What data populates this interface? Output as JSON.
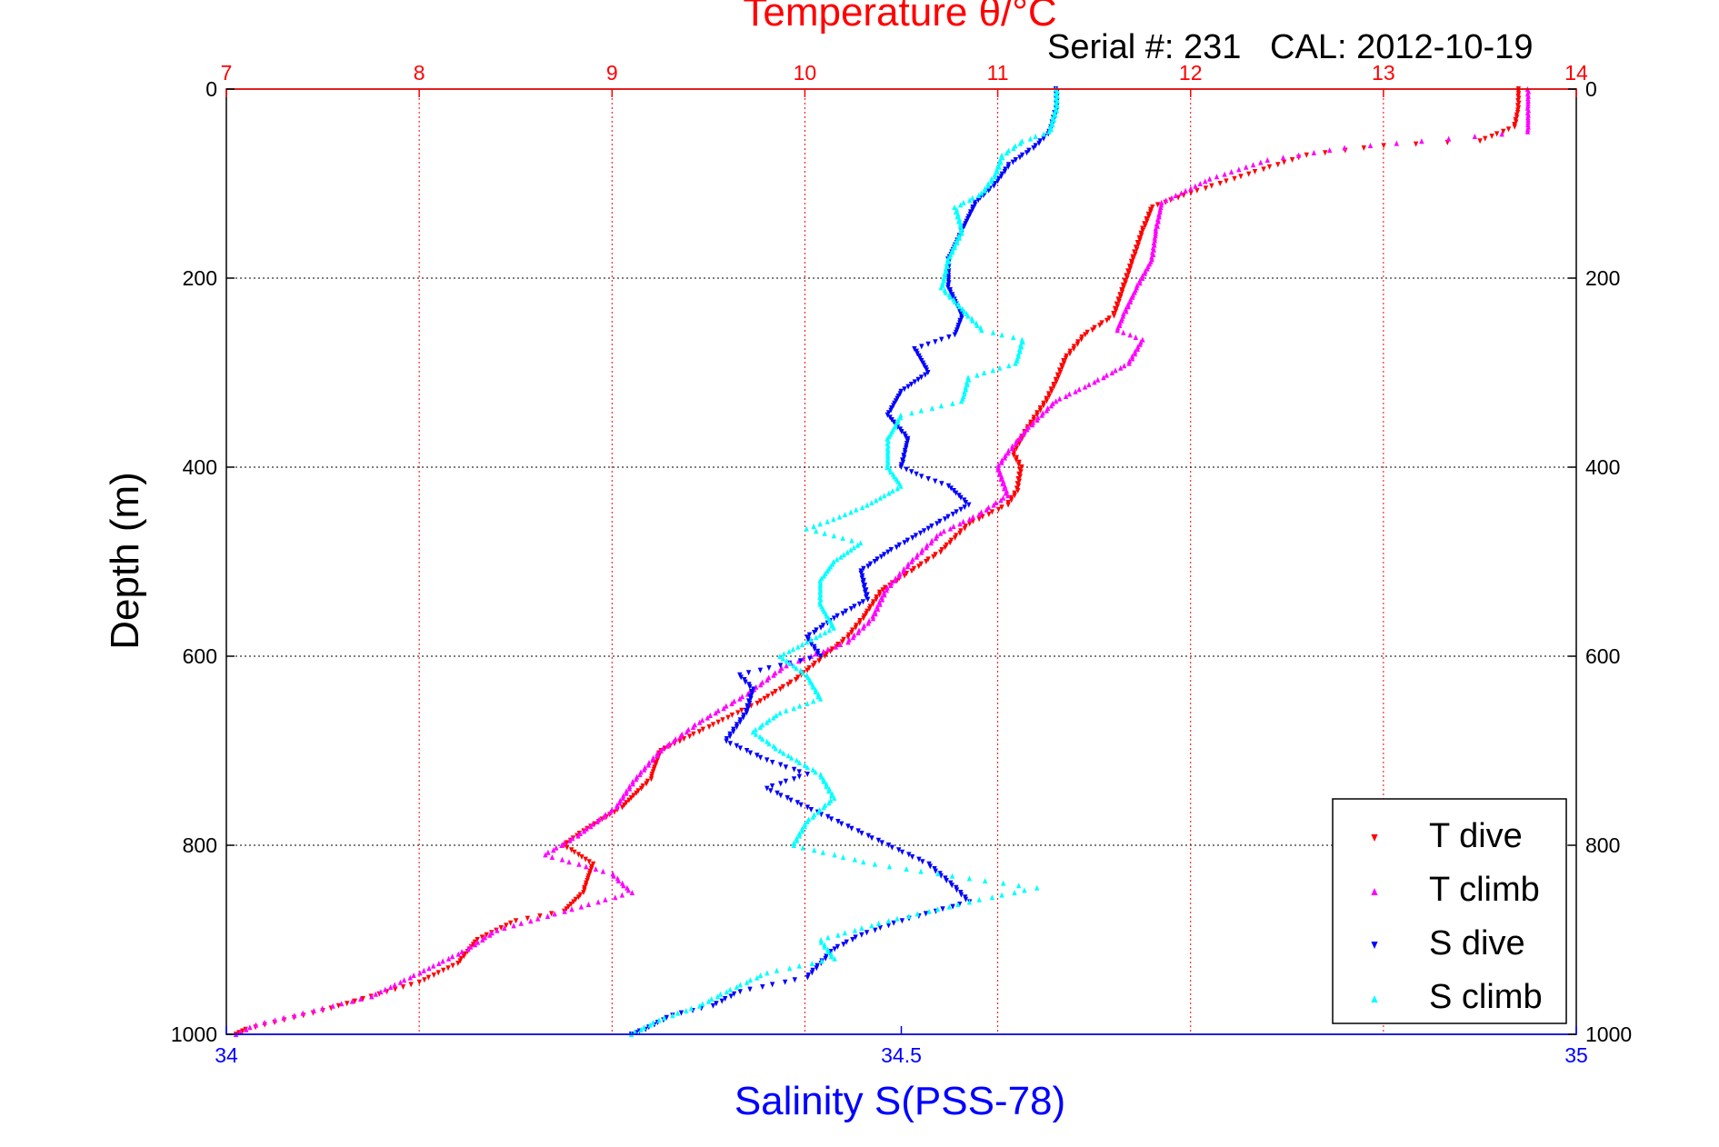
{
  "chart_data": {
    "type": "scatter",
    "title": "Temperature θ/°C",
    "annotation": "Serial #: 231   CAL: 2012-10-19",
    "ylabel": "Depth (m)",
    "xlabel": "Salinity S(PSS-78)",
    "temperature_axis": {
      "position": "top",
      "color": "#ff0000",
      "range": [
        7,
        14
      ],
      "ticks": [
        "7",
        "8",
        "9",
        "10",
        "11",
        "12",
        "13",
        "14"
      ]
    },
    "salinity_axis": {
      "position": "bottom",
      "color": "#0000ff",
      "range": [
        34,
        35
      ],
      "ticks": [
        "34",
        "34.5",
        "35"
      ]
    },
    "depth_axis": {
      "reversed": true,
      "range": [
        0,
        1000
      ],
      "ticks": [
        "0",
        "200",
        "400",
        "600",
        "800",
        "1000"
      ]
    },
    "grid": true,
    "legend_position": "bottom-right",
    "series": [
      {
        "name": "T dive",
        "axis": "temperature",
        "color": "#ff0000",
        "marker": "triangle-down",
        "points": [
          [
            13.7,
            0
          ],
          [
            13.7,
            20
          ],
          [
            13.68,
            40
          ],
          [
            13.5,
            55
          ],
          [
            13.0,
            60
          ],
          [
            12.6,
            70
          ],
          [
            12.3,
            90
          ],
          [
            12.0,
            110
          ],
          [
            11.8,
            125
          ],
          [
            11.75,
            150
          ],
          [
            11.7,
            180
          ],
          [
            11.65,
            210
          ],
          [
            11.6,
            240
          ],
          [
            11.45,
            260
          ],
          [
            11.35,
            285
          ],
          [
            11.3,
            310
          ],
          [
            11.25,
            330
          ],
          [
            11.15,
            360
          ],
          [
            11.08,
            385
          ],
          [
            11.12,
            400
          ],
          [
            11.1,
            425
          ],
          [
            11.05,
            440
          ],
          [
            10.85,
            460
          ],
          [
            10.7,
            490
          ],
          [
            10.55,
            510
          ],
          [
            10.4,
            530
          ],
          [
            10.3,
            560
          ],
          [
            10.22,
            580
          ],
          [
            10.1,
            600
          ],
          [
            9.95,
            625
          ],
          [
            9.75,
            650
          ],
          [
            9.5,
            675
          ],
          [
            9.25,
            700
          ],
          [
            9.2,
            730
          ],
          [
            9.05,
            760
          ],
          [
            8.85,
            785
          ],
          [
            8.75,
            800
          ],
          [
            8.9,
            820
          ],
          [
            8.85,
            850
          ],
          [
            8.75,
            870
          ],
          [
            8.5,
            880
          ],
          [
            8.3,
            900
          ],
          [
            8.2,
            925
          ],
          [
            8.0,
            945
          ],
          [
            7.75,
            960
          ],
          [
            7.5,
            975
          ],
          [
            7.3,
            985
          ],
          [
            7.1,
            995
          ],
          [
            7.05,
            1000
          ]
        ]
      },
      {
        "name": "T climb",
        "axis": "temperature",
        "color": "#ff00ff",
        "marker": "triangle-up",
        "points": [
          [
            13.75,
            0
          ],
          [
            13.75,
            20
          ],
          [
            13.75,
            45
          ],
          [
            13.2,
            55
          ],
          [
            12.8,
            62
          ],
          [
            12.4,
            75
          ],
          [
            12.1,
            95
          ],
          [
            11.85,
            120
          ],
          [
            11.82,
            150
          ],
          [
            11.8,
            180
          ],
          [
            11.72,
            210
          ],
          [
            11.65,
            240
          ],
          [
            11.62,
            255
          ],
          [
            11.75,
            265
          ],
          [
            11.68,
            290
          ],
          [
            11.5,
            310
          ],
          [
            11.3,
            330
          ],
          [
            11.15,
            360
          ],
          [
            11.05,
            385
          ],
          [
            11.0,
            400
          ],
          [
            11.05,
            430
          ],
          [
            10.9,
            450
          ],
          [
            10.7,
            470
          ],
          [
            10.55,
            500
          ],
          [
            10.42,
            530
          ],
          [
            10.35,
            560
          ],
          [
            10.22,
            585
          ],
          [
            9.9,
            610
          ],
          [
            9.7,
            640
          ],
          [
            9.45,
            670
          ],
          [
            9.25,
            700
          ],
          [
            9.12,
            730
          ],
          [
            9.02,
            760
          ],
          [
            8.82,
            790
          ],
          [
            8.65,
            810
          ],
          [
            9.0,
            830
          ],
          [
            9.1,
            850
          ],
          [
            8.75,
            870
          ],
          [
            8.4,
            890
          ],
          [
            8.25,
            910
          ],
          [
            8.0,
            935
          ],
          [
            7.75,
            960
          ],
          [
            7.45,
            975
          ],
          [
            7.15,
            990
          ],
          [
            7.05,
            1000
          ]
        ]
      },
      {
        "name": "S dive",
        "axis": "salinity",
        "color": "#0000ff",
        "marker": "triangle-down",
        "points": [
          [
            34.615,
            0
          ],
          [
            34.615,
            20
          ],
          [
            34.61,
            45
          ],
          [
            34.6,
            60
          ],
          [
            34.58,
            80
          ],
          [
            34.57,
            100
          ],
          [
            34.555,
            120
          ],
          [
            34.545,
            150
          ],
          [
            34.535,
            180
          ],
          [
            34.535,
            210
          ],
          [
            34.545,
            240
          ],
          [
            34.54,
            260
          ],
          [
            34.51,
            275
          ],
          [
            34.52,
            300
          ],
          [
            34.5,
            320
          ],
          [
            34.49,
            345
          ],
          [
            34.505,
            370
          ],
          [
            34.5,
            400
          ],
          [
            34.515,
            410
          ],
          [
            34.535,
            420
          ],
          [
            34.55,
            440
          ],
          [
            34.52,
            465
          ],
          [
            34.49,
            490
          ],
          [
            34.47,
            510
          ],
          [
            34.475,
            540
          ],
          [
            34.45,
            560
          ],
          [
            34.43,
            580
          ],
          [
            34.44,
            600
          ],
          [
            34.38,
            620
          ],
          [
            34.39,
            635
          ],
          [
            34.385,
            660
          ],
          [
            34.37,
            690
          ],
          [
            34.4,
            710
          ],
          [
            34.43,
            725
          ],
          [
            34.4,
            740
          ],
          [
            34.43,
            760
          ],
          [
            34.46,
            780
          ],
          [
            34.49,
            800
          ],
          [
            34.52,
            820
          ],
          [
            34.54,
            845
          ],
          [
            34.55,
            860
          ],
          [
            34.5,
            880
          ],
          [
            34.47,
            895
          ],
          [
            34.45,
            910
          ],
          [
            34.44,
            925
          ],
          [
            34.43,
            940
          ],
          [
            34.38,
            955
          ],
          [
            34.36,
            970
          ],
          [
            34.33,
            980
          ],
          [
            34.31,
            995
          ],
          [
            34.3,
            1000
          ]
        ]
      },
      {
        "name": "S climb",
        "axis": "salinity",
        "color": "#00ffff",
        "marker": "triangle-up",
        "points": [
          [
            34.615,
            0
          ],
          [
            34.615,
            20
          ],
          [
            34.61,
            45
          ],
          [
            34.59,
            55
          ],
          [
            34.575,
            70
          ],
          [
            34.57,
            90
          ],
          [
            34.56,
            110
          ],
          [
            34.54,
            125
          ],
          [
            34.545,
            150
          ],
          [
            34.535,
            180
          ],
          [
            34.53,
            210
          ],
          [
            34.55,
            240
          ],
          [
            34.56,
            255
          ],
          [
            34.59,
            265
          ],
          [
            34.585,
            290
          ],
          [
            34.55,
            305
          ],
          [
            34.545,
            330
          ],
          [
            34.5,
            345
          ],
          [
            34.49,
            370
          ],
          [
            34.49,
            400
          ],
          [
            34.5,
            420
          ],
          [
            34.475,
            440
          ],
          [
            34.45,
            455
          ],
          [
            34.43,
            465
          ],
          [
            34.47,
            480
          ],
          [
            34.45,
            500
          ],
          [
            34.44,
            520
          ],
          [
            34.44,
            545
          ],
          [
            34.45,
            570
          ],
          [
            34.43,
            585
          ],
          [
            34.41,
            600
          ],
          [
            34.43,
            620
          ],
          [
            34.44,
            645
          ],
          [
            34.41,
            660
          ],
          [
            34.39,
            680
          ],
          [
            34.41,
            700
          ],
          [
            34.44,
            725
          ],
          [
            34.45,
            750
          ],
          [
            34.43,
            775
          ],
          [
            34.42,
            800
          ],
          [
            34.48,
            820
          ],
          [
            34.55,
            835
          ],
          [
            34.6,
            845
          ],
          [
            34.55,
            860
          ],
          [
            34.49,
            880
          ],
          [
            34.44,
            900
          ],
          [
            34.45,
            920
          ],
          [
            34.4,
            935
          ],
          [
            34.37,
            955
          ],
          [
            34.35,
            970
          ],
          [
            34.32,
            985
          ],
          [
            34.3,
            1000
          ]
        ]
      }
    ]
  }
}
